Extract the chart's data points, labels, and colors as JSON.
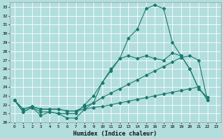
{
  "xlabel": "Humidex (Indice chaleur)",
  "background_color": "#b2dede",
  "grid_color": "#ffffff",
  "line_color": "#1a7a6e",
  "xlim": [
    -0.5,
    23.5
  ],
  "ylim": [
    20.0,
    33.5
  ],
  "yticks": [
    20,
    21,
    22,
    23,
    24,
    25,
    26,
    27,
    28,
    29,
    30,
    31,
    32,
    33
  ],
  "xticks": [
    0,
    1,
    2,
    3,
    4,
    5,
    6,
    7,
    8,
    9,
    10,
    11,
    12,
    13,
    14,
    15,
    16,
    17,
    18,
    19,
    20,
    21,
    22,
    23
  ],
  "series": [
    [
      22.5,
      21.2,
      21.7,
      20.8,
      21.2,
      21.0,
      20.5,
      20.5,
      21.5,
      22.2,
      24.5,
      26.0,
      27.2,
      29.5,
      30.5,
      32.8,
      33.2,
      32.8,
      29.0,
      27.5,
      26.0,
      23.8,
      22.8
    ],
    [
      22.5,
      21.2,
      21.7,
      21.2,
      21.2,
      21.0,
      21.0,
      21.0,
      22.0,
      23.0,
      24.5,
      25.8,
      27.2,
      27.5,
      27.2,
      27.5,
      27.2,
      27.0,
      27.8,
      27.5,
      26.0,
      23.8,
      22.8
    ],
    [
      22.5,
      21.5,
      21.8,
      21.5,
      21.5,
      21.5,
      21.3,
      21.3,
      21.8,
      22.2,
      22.8,
      23.3,
      23.8,
      24.3,
      24.8,
      25.3,
      25.8,
      26.3,
      26.8,
      27.3,
      27.5,
      27.0,
      22.5
    ],
    [
      22.5,
      21.5,
      21.8,
      21.5,
      21.5,
      21.5,
      21.3,
      21.3,
      21.5,
      21.7,
      21.8,
      22.0,
      22.2,
      22.4,
      22.6,
      22.8,
      23.0,
      23.2,
      23.4,
      23.6,
      23.8,
      24.0,
      22.5
    ]
  ]
}
